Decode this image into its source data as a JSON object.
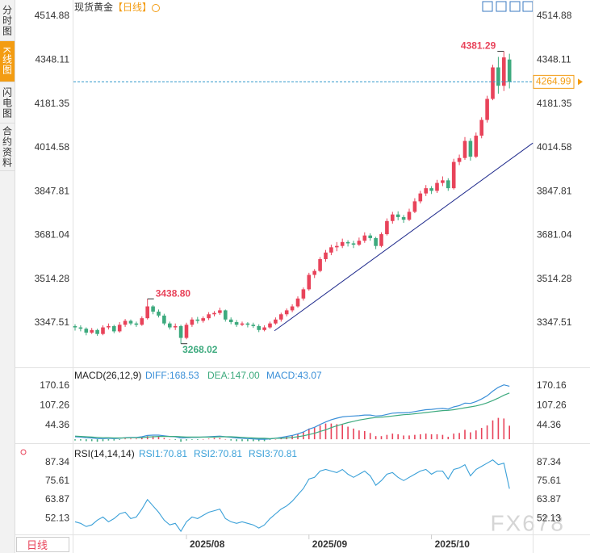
{
  "tabs": [
    "分时图",
    "K线图",
    "闪电图",
    "合约资料"
  ],
  "period_selector": "日线",
  "watermark": "FX678",
  "chart_data": {
    "type": "candlestick",
    "title": "现货黄金",
    "period": "【日线】",
    "up_color": "#e8435a",
    "down_color": "#3daa7e",
    "categories": [
      null,
      null,
      null,
      null,
      null,
      null,
      null,
      null,
      null,
      null,
      null,
      null,
      null,
      null,
      null,
      null,
      null,
      null,
      null,
      null,
      "2025/08",
      null,
      null,
      null,
      null,
      null,
      null,
      null,
      null,
      null,
      null,
      null,
      null,
      null,
      null,
      null,
      null,
      null,
      null,
      null,
      null,
      null,
      "2025/09",
      null,
      null,
      null,
      null,
      null,
      null,
      null,
      null,
      null,
      null,
      null,
      null,
      null,
      null,
      null,
      null,
      null,
      null,
      null,
      null,
      null,
      "2025/10",
      null,
      null,
      null,
      null,
      null,
      null,
      null,
      null,
      null,
      null,
      null,
      null,
      null,
      null
    ],
    "open": [
      3335,
      3330,
      3325,
      3310,
      3320,
      3305,
      3330,
      3335,
      3315,
      3340,
      3355,
      3345,
      3340,
      3365,
      3410,
      3390,
      3375,
      3345,
      3330,
      3335,
      3290,
      3340,
      3360,
      3355,
      3365,
      3380,
      3385,
      3395,
      3360,
      3350,
      3340,
      3345,
      3340,
      3335,
      3320,
      3330,
      3345,
      3360,
      3380,
      3395,
      3410,
      3440,
      3475,
      3530,
      3545,
      3590,
      3615,
      3635,
      3640,
      3655,
      3650,
      3645,
      3660,
      3680,
      3670,
      3640,
      3685,
      3735,
      3760,
      3750,
      3740,
      3770,
      3810,
      3840,
      3860,
      3850,
      3880,
      3890,
      3860,
      3960,
      3975,
      4040,
      3980,
      4060,
      4120,
      4200,
      4320,
      4250,
      4350
    ],
    "high": [
      3342,
      3338,
      3330,
      3328,
      3325,
      3338,
      3345,
      3340,
      3350,
      3362,
      3360,
      3352,
      3372,
      3438.8,
      3415,
      3398,
      3382,
      3352,
      3345,
      3340,
      3348,
      3368,
      3370,
      3372,
      3388,
      3392,
      3405,
      3398,
      3368,
      3358,
      3352,
      3350,
      3348,
      3342,
      3338,
      3352,
      3368,
      3386,
      3402,
      3418,
      3448,
      3482,
      3538,
      3552,
      3598,
      3625,
      3645,
      3655,
      3668,
      3662,
      3660,
      3672,
      3692,
      3688,
      3675,
      3692,
      3745,
      3770,
      3772,
      3758,
      3782,
      3822,
      3850,
      3872,
      3868,
      3892,
      3905,
      3898,
      3972,
      3988,
      4055,
      4050,
      4072,
      4130,
      4212,
      4330,
      4360,
      4381.29,
      4372
    ],
    "low": [
      3318,
      3315,
      3300,
      3305,
      3298,
      3300,
      3322,
      3308,
      3310,
      3332,
      3338,
      3332,
      3336,
      3360,
      3380,
      3368,
      3338,
      3322,
      3320,
      3268.02,
      3285,
      3332,
      3345,
      3348,
      3358,
      3372,
      3378,
      3352,
      3342,
      3332,
      3335,
      3330,
      3328,
      3312,
      3315,
      3325,
      3340,
      3352,
      3372,
      3388,
      3405,
      3432,
      3470,
      3518,
      3540,
      3580,
      3605,
      3620,
      3632,
      3638,
      3632,
      3640,
      3652,
      3660,
      3628,
      3635,
      3680,
      3725,
      3738,
      3728,
      3735,
      3765,
      3802,
      3830,
      3838,
      3842,
      3868,
      3850,
      3855,
      3948,
      3968,
      3965,
      3975,
      4050,
      4110,
      4195,
      4220,
      4230,
      4240
    ],
    "close": [
      3330,
      3325,
      3310,
      3320,
      3305,
      3330,
      3335,
      3315,
      3340,
      3355,
      3345,
      3340,
      3365,
      3410,
      3390,
      3375,
      3345,
      3330,
      3335,
      3290,
      3340,
      3360,
      3355,
      3365,
      3380,
      3385,
      3395,
      3360,
      3350,
      3340,
      3345,
      3340,
      3335,
      3320,
      3330,
      3345,
      3360,
      3380,
      3395,
      3410,
      3440,
      3475,
      3530,
      3545,
      3590,
      3615,
      3635,
      3640,
      3655,
      3650,
      3645,
      3660,
      3680,
      3670,
      3640,
      3685,
      3735,
      3760,
      3750,
      3740,
      3770,
      3810,
      3840,
      3860,
      3850,
      3880,
      3890,
      3860,
      3960,
      3975,
      4040,
      3980,
      4060,
      4120,
      4200,
      4320,
      4250,
      4358,
      4264.99
    ],
    "high_labels": [
      null,
      null,
      null,
      null,
      null,
      null,
      null,
      null,
      null,
      null,
      null,
      null,
      null,
      "3438.80",
      null,
      null,
      null,
      null,
      null,
      null,
      null,
      null,
      null,
      null,
      null,
      null,
      null,
      null,
      null,
      null,
      null,
      null,
      null,
      null,
      null,
      null,
      null,
      null,
      null,
      null,
      null,
      null,
      null,
      null,
      null,
      null,
      null,
      null,
      null,
      null,
      null,
      null,
      null,
      null,
      null,
      null,
      null,
      null,
      null,
      null,
      null,
      null,
      null,
      null,
      null,
      null,
      null,
      null,
      null,
      null,
      null,
      null,
      null,
      null,
      null,
      null,
      null,
      "4381.29",
      null
    ],
    "low_labels": [
      null,
      null,
      null,
      null,
      null,
      null,
      null,
      null,
      null,
      null,
      null,
      null,
      null,
      null,
      null,
      null,
      null,
      null,
      null,
      "3268.02",
      null,
      null,
      null,
      null,
      null,
      null,
      null,
      null,
      null,
      null,
      null,
      null,
      null,
      null,
      null,
      null,
      null,
      null,
      null,
      null,
      null,
      null,
      null,
      null,
      null,
      null,
      null,
      null,
      null,
      null,
      null,
      null,
      null,
      null,
      null,
      null,
      null,
      null,
      null,
      null,
      null,
      null,
      null,
      null,
      null,
      null,
      null,
      null,
      null,
      null,
      null,
      null,
      null,
      null,
      null,
      null,
      null,
      null,
      null
    ],
    "last_line_color": "#3399cc",
    "last_label_color": "#f39c12",
    "ylim": [
      3178,
      4552
    ],
    "yticks": [
      3347.51,
      3514.28,
      3681.04,
      3847.81,
      4014.58,
      4181.35,
      4348.11,
      4514.88
    ],
    "trendline": {
      "x": [
        35.8,
        82.2
      ],
      "y": [
        3317,
        4032
      ],
      "color": "#1f2a8c"
    },
    "macd": {
      "title": "MACD(26,12,9)",
      "legend": [
        "DIFF:168.53",
        "DEA:147.00",
        "MACD:43.07"
      ],
      "legend_colors": [
        "#3a8fd8",
        "#3daa7e",
        "#3a8fd8"
      ],
      "diff_color": "#3a8fd8",
      "dea_color": "#3daa7e",
      "diff": [
        8,
        7,
        5,
        4,
        2,
        2,
        3,
        2,
        3,
        5,
        6,
        6,
        8,
        12,
        13,
        13,
        11,
        9,
        8,
        4,
        5,
        6,
        6,
        7,
        8,
        9,
        10,
        8,
        6,
        4,
        3,
        2,
        1,
        0,
        0,
        1,
        3,
        6,
        9,
        12,
        17,
        23,
        32,
        38,
        47,
        55,
        62,
        67,
        71,
        73,
        74,
        75,
        77,
        77,
        74,
        75,
        79,
        83,
        84,
        84,
        85,
        88,
        91,
        94,
        95,
        97,
        98,
        96,
        103,
        107,
        115,
        114,
        120,
        128,
        138,
        153,
        165,
        173,
        168.53
      ],
      "dea": [
        10,
        9,
        8,
        7,
        6,
        5,
        5,
        4,
        4,
        4,
        5,
        5,
        5,
        7,
        8,
        9,
        9,
        9,
        9,
        8,
        7,
        7,
        7,
        7,
        7,
        7,
        8,
        8,
        8,
        7,
        6,
        5,
        4,
        3,
        3,
        2,
        3,
        3,
        4,
        6,
        8,
        11,
        15,
        19,
        25,
        30,
        37,
        43,
        48,
        53,
        57,
        61,
        64,
        67,
        69,
        70,
        72,
        74,
        76,
        78,
        79,
        81,
        83,
        85,
        87,
        89,
        91,
        92,
        94,
        97,
        100,
        103,
        106,
        110,
        116,
        123,
        131,
        140,
        147
      ],
      "hist": [
        -4,
        -4,
        -6,
        -6,
        -8,
        -6,
        -4,
        -4,
        -2,
        2,
        2,
        2,
        6,
        10,
        10,
        8,
        4,
        0,
        -2,
        -8,
        -4,
        -2,
        -2,
        0,
        2,
        4,
        4,
        0,
        -4,
        -6,
        -6,
        -6,
        -6,
        -6,
        -6,
        -2,
        0,
        6,
        10,
        12,
        18,
        24,
        34,
        38,
        44,
        50,
        50,
        48,
        46,
        40,
        34,
        28,
        26,
        20,
        10,
        10,
        14,
        18,
        16,
        12,
        12,
        14,
        16,
        18,
        16,
        16,
        14,
        8,
        18,
        20,
        30,
        22,
        28,
        36,
        44,
        60,
        68,
        66,
        43.07
      ],
      "ylim": [
        -10,
        221
      ],
      "yticks": [
        44.36,
        107.26,
        170.16
      ]
    },
    "rsi": {
      "title": "RSI(14,14,14)",
      "legend": [
        "RSI1:70.81",
        "RSI2:70.81",
        "RSI3:70.81"
      ],
      "color": "#3aa0d8",
      "values": [
        50,
        49,
        47,
        48,
        51,
        53,
        50,
        52,
        55,
        56,
        52,
        53,
        58,
        64,
        60,
        56,
        51,
        48,
        49,
        44,
        50,
        53,
        52,
        54,
        56,
        57,
        58,
        52,
        50,
        49,
        50,
        49,
        48,
        46,
        48,
        52,
        55,
        58,
        60,
        63,
        67,
        71,
        77,
        78,
        82,
        83,
        82,
        81,
        83,
        80,
        78,
        80,
        82,
        79,
        73,
        76,
        80,
        81,
        78,
        76,
        78,
        80,
        82,
        83,
        80,
        82,
        82,
        77,
        83,
        84,
        86,
        79,
        83,
        85,
        87,
        89,
        86,
        87,
        70.81
      ],
      "ylim": [
        42,
        96
      ],
      "yticks": [
        52.13,
        63.87,
        75.61,
        87.34
      ]
    }
  }
}
